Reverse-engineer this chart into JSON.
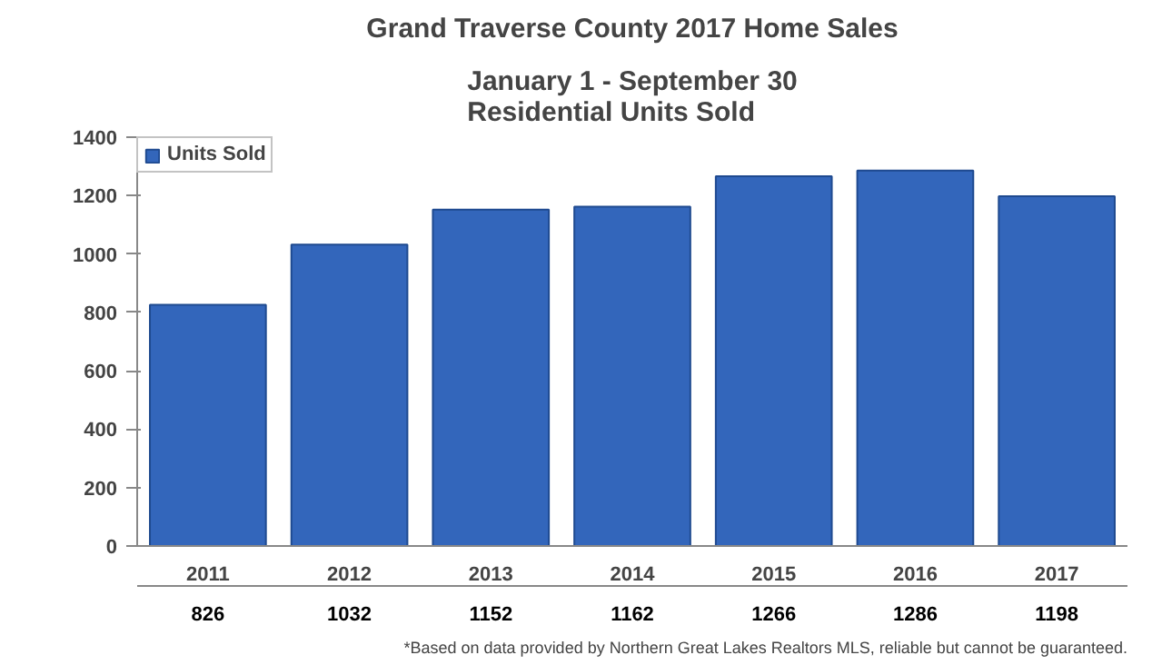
{
  "chart_data": {
    "type": "bar",
    "title": "Grand Traverse County 2017 Home Sales",
    "subtitle": "January 1 - September 30\nResidential Units Sold",
    "categories": [
      "2011",
      "2012",
      "2013",
      "2014",
      "2015",
      "2016",
      "2017"
    ],
    "series": [
      {
        "name": "Units Sold",
        "color": "#3366bb",
        "values": [
          826,
          1032,
          1152,
          1162,
          1266,
          1286,
          1198
        ]
      }
    ],
    "ylim": [
      0,
      1400
    ],
    "yticks": [
      0,
      200,
      400,
      600,
      800,
      1000,
      1200,
      1400
    ],
    "grid": false,
    "data_labels": true,
    "annotations": [
      "*Based on data provided by Northern Great Lakes Realtors MLS, reliable but cannot be guaranteed."
    ]
  }
}
